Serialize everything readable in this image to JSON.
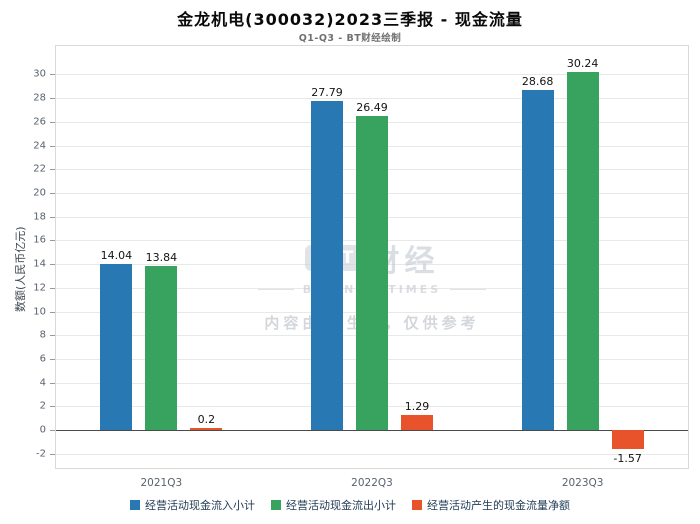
{
  "title": "金龙机电(300032)2023三季报 - 现金流量",
  "subtitle": "Q1-Q3 - BT财经绘制",
  "watermark": {
    "logo_letters": [
      "B",
      "T"
    ],
    "brand": "财经",
    "brand_en": "BUSINESSTIMES",
    "notice": "内容由AI生成，仅供参考"
  },
  "chart_data": {
    "type": "bar",
    "categories": [
      "2021Q3",
      "2022Q3",
      "2023Q3"
    ],
    "series": [
      {
        "name": "经营活动现金流入小计",
        "color": "#2878b4",
        "values": [
          14.04,
          27.79,
          28.68
        ]
      },
      {
        "name": "经营活动现金流出小计",
        "color": "#38a35f",
        "values": [
          13.84,
          26.49,
          30.24
        ]
      },
      {
        "name": "经营活动产生的现金流量净额",
        "color": "#e8532c",
        "values": [
          0.2,
          1.29,
          -1.57
        ]
      }
    ],
    "title": "金龙机电(300032)2023三季报 - 现金流量",
    "xlabel": "",
    "ylabel": "数额(人民币亿元)",
    "ylim": [
      -2,
      30
    ],
    "ytick_step": 2,
    "grid": true,
    "legend_position": "bottom"
  }
}
